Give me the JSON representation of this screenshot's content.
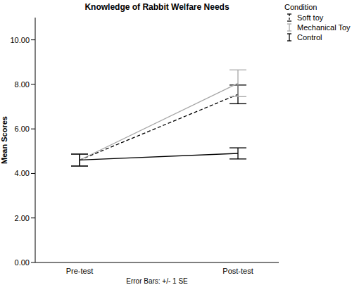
{
  "chart_data": {
    "type": "line",
    "title": "Knowledge of Rabbit Welfare Needs",
    "x_label": "Error Bars: +/- 1 SE",
    "y_label": "Mean Scores",
    "legend_title": "Condition",
    "legend": "upper right",
    "grid": false,
    "categories": [
      "Pre-test",
      "Post-test"
    ],
    "ylim": [
      0,
      11
    ],
    "yticks": [
      {
        "value": 0,
        "label": "0.00"
      },
      {
        "value": 2,
        "label": "2.00"
      },
      {
        "value": 4,
        "label": "4.00"
      },
      {
        "value": 6,
        "label": "6.00"
      },
      {
        "value": 8,
        "label": "8.00"
      },
      {
        "value": 10,
        "label": "10.00"
      }
    ],
    "series": [
      {
        "name": "Soft toy",
        "color": "#000000",
        "line_style": "dashed",
        "values": [
          4.6,
          7.55
        ],
        "se": [
          0.27,
          0.42
        ]
      },
      {
        "name": "Mechanical Toy",
        "color": "#a6a6a6",
        "line_style": "solid",
        "values": [
          4.6,
          8.05
        ],
        "se": [
          0.28,
          0.6
        ]
      },
      {
        "name": "Control",
        "color": "#000000",
        "line_style": "solid",
        "values": [
          4.6,
          4.9
        ],
        "se": [
          0.27,
          0.25
        ]
      }
    ]
  }
}
